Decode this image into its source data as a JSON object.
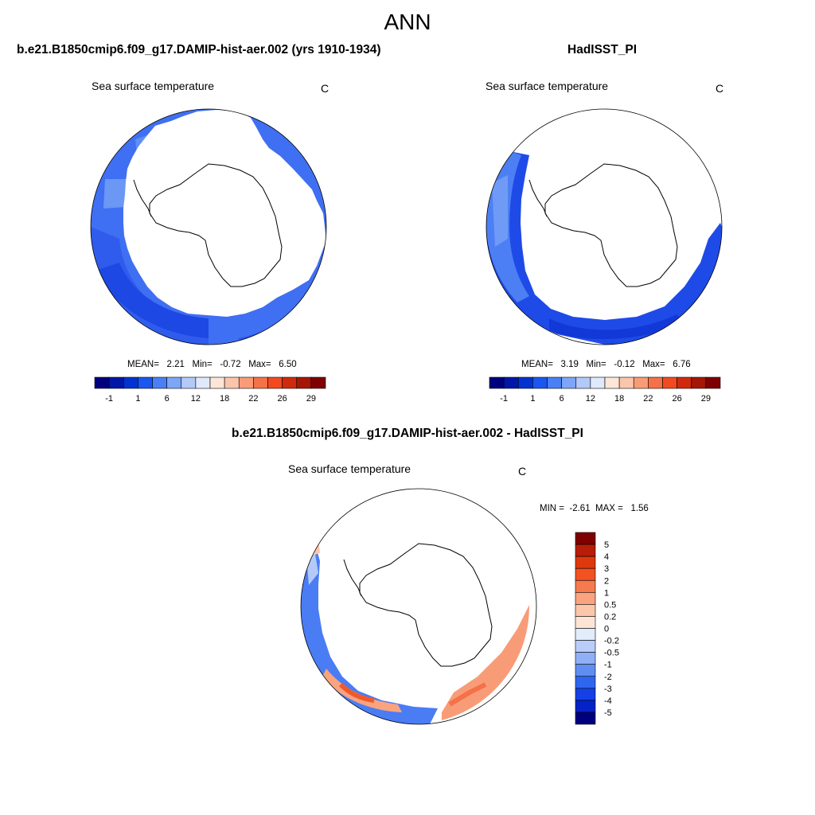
{
  "title": "ANN",
  "panels": [
    {
      "title": "b.e21.B1850cmip6.f09_g17.DAMIP-hist-aer.002 (yrs 1910-1934)",
      "variable": "Sea surface temperature",
      "units": "C",
      "stats": {
        "mean_label": "MEAN=",
        "mean": "2.21",
        "min_label": "Min=",
        "min": "-0.72",
        "max_label": "Max=",
        "max": "6.50"
      }
    },
    {
      "title": "HadISST_PI",
      "variable": "Sea surface temperature",
      "units": "C",
      "stats": {
        "mean_label": "MEAN=",
        "mean": "3.19",
        "min_label": "Min=",
        "min": "-0.12",
        "max_label": "Max=",
        "max": "6.76"
      }
    },
    {
      "title": "b.e21.B1850cmip6.f09_g17.DAMIP-hist-aer.002 - HadISST_PI",
      "variable": "Sea surface temperature",
      "units": "C",
      "stats": {
        "min_label": "MIN =",
        "min": "-2.61",
        "max_label": "MAX =",
        "max": "1.56"
      }
    }
  ],
  "colorbar_abs": {
    "colors": [
      "#00007f",
      "#0017a8",
      "#0033d0",
      "#1a56f0",
      "#4a7ff5",
      "#7ea6f7",
      "#b3c9f8",
      "#dfe9fb",
      "#fde6d7",
      "#fbc5ab",
      "#f89c78",
      "#f57148",
      "#f24a1f",
      "#d02a0c",
      "#a61606",
      "#7f0000"
    ],
    "tick_labels": [
      "-1",
      "1",
      "6",
      "12",
      "18",
      "22",
      "26",
      "29"
    ]
  },
  "colorbar_diff": {
    "colors_top_to_bottom": [
      "#7f0000",
      "#b81d07",
      "#e0380d",
      "#f35221",
      "#f57a4e",
      "#f9a37f",
      "#fbc6aa",
      "#fde5d5",
      "#e3ecfb",
      "#b9cdf8",
      "#8fb0f6",
      "#5f8ef3",
      "#2f66f0",
      "#1440e6",
      "#0522c9",
      "#00007f"
    ],
    "tick_labels": [
      "5",
      "4",
      "3",
      "2",
      "1",
      "0.5",
      "0.2",
      "0",
      "-0.2",
      "-0.5",
      "-1",
      "-2",
      "-3",
      "-4",
      "-5"
    ]
  }
}
